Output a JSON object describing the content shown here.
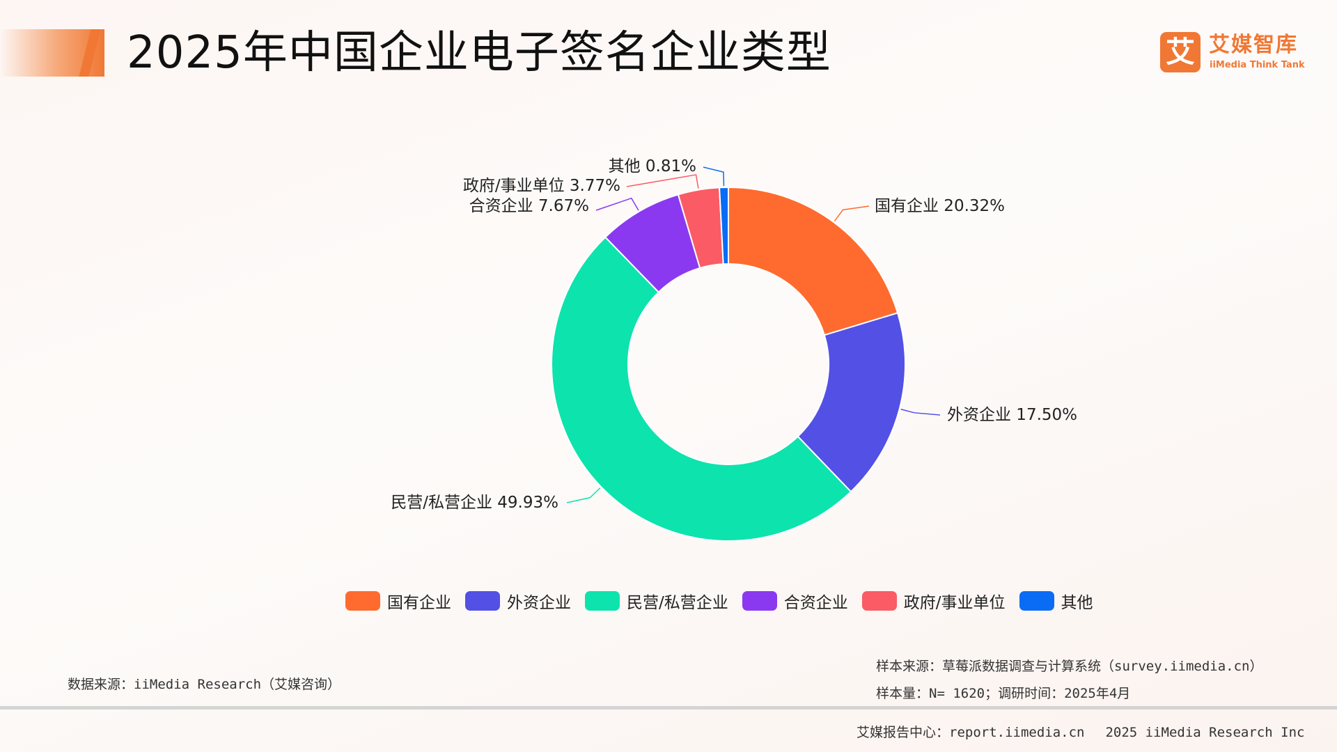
{
  "header": {
    "title": "2025年中国企业电子签名企业类型"
  },
  "logo": {
    "mark": "艾",
    "cn": "艾媒智库",
    "en": "iiMedia Think Tank"
  },
  "chart_data": {
    "type": "pie",
    "donut": true,
    "categories": [
      "国有企业",
      "外资企业",
      "民营/私营企业",
      "合资企业",
      "政府/事业单位",
      "其他"
    ],
    "values": [
      20.32,
      17.5,
      49.93,
      7.67,
      3.77,
      0.81
    ],
    "labels": [
      "国有企业 20.32%",
      "外资企业 17.50%",
      "民营/私营企业 49.93%",
      "合资企业 7.67%",
      "政府/事业单位 3.77%",
      "其他 0.81%"
    ],
    "colors": [
      "#ff6b2e",
      "#5350e6",
      "#0de3ad",
      "#8b39f0",
      "#fb5b64",
      "#0a6cf5"
    ],
    "legend_position": "bottom"
  },
  "legend": {
    "items": [
      {
        "label": "国有企业",
        "color": "#ff6b2e"
      },
      {
        "label": "外资企业",
        "color": "#5350e6"
      },
      {
        "label": "民营/私营企业",
        "color": "#0de3ad"
      },
      {
        "label": "合资企业",
        "color": "#8b39f0"
      },
      {
        "label": "政府/事业单位",
        "color": "#fb5b64"
      },
      {
        "label": "其他",
        "color": "#0a6cf5"
      }
    ]
  },
  "notes": {
    "source": "数据来源：iiMedia Research（艾媒咨询）",
    "sample_source": "样本来源：草莓派数据调查与计算系统（survey.iimedia.cn）",
    "sample_size": "样本量：N= 1620；调研时间：2025年4月"
  },
  "footer": {
    "report_center": "艾媒报告中心：report.iimedia.cn",
    "copyright": "2025 iiMedia Research Inc"
  }
}
